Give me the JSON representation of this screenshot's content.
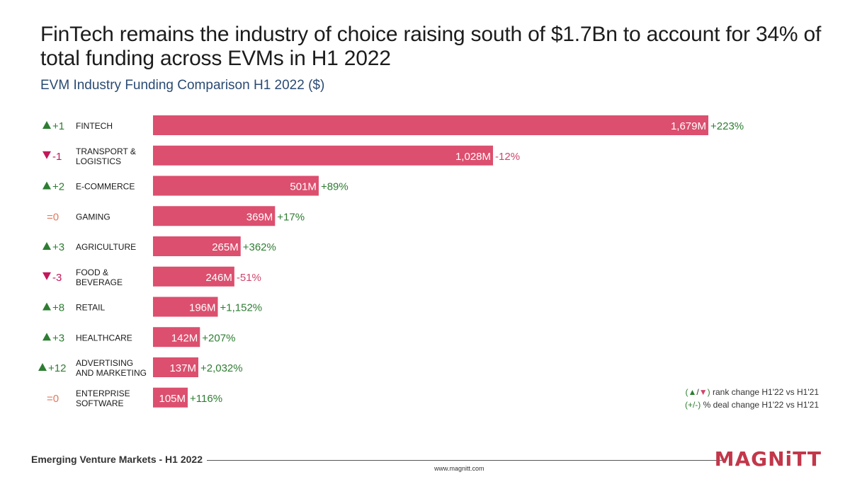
{
  "header": {
    "title": "FinTech remains the industry of choice raising south of $1.7Bn to account for 34% of total funding across EVMs in H1 2022",
    "subtitle": "EVM Industry Funding Comparison H1 2022 ($)"
  },
  "colors": {
    "bar": "#dc4f6e",
    "up": "#2e7d32",
    "down": "#c2185b",
    "neutral": "#e07a5f",
    "pct_positive": "#2e7d32",
    "pct_negative": "#d1456b",
    "bar_label": "#ffffff",
    "category": "#1a1a1a"
  },
  "chart_data": {
    "type": "bar",
    "orientation": "horizontal",
    "title": "EVM Industry Funding Comparison H1 2022 ($)",
    "unit": "M",
    "categories": [
      "FINTECH",
      "TRANSPORT & LOGISTICS",
      "E-COMMERCE",
      "GAMING",
      "AGRICULTURE",
      "FOOD & BEVERAGE",
      "RETAIL",
      "HEALTHCARE",
      "ADVERTISING AND MARKETING",
      "ENTERPRISE SOFTWARE"
    ],
    "category_lines": [
      [
        "FINTECH"
      ],
      [
        "TRANSPORT &",
        "LOGISTICS"
      ],
      [
        "E-COMMERCE"
      ],
      [
        "GAMING"
      ],
      [
        "AGRICULTURE"
      ],
      [
        "FOOD &",
        "BEVERAGE"
      ],
      [
        "RETAIL"
      ],
      [
        "HEALTHCARE"
      ],
      [
        "ADVERTISING",
        "AND MARKETING"
      ],
      [
        "ENTERPRISE",
        "SOFTWARE"
      ]
    ],
    "values": [
      1679,
      1028,
      501,
      369,
      265,
      246,
      196,
      142,
      137,
      105
    ],
    "value_labels": [
      "1,679M",
      "1,028M",
      "501M",
      "369M",
      "265M",
      "246M",
      "196M",
      "142M",
      "137M",
      "105M"
    ],
    "pct_change": [
      "+223%",
      "-12%",
      "+89%",
      "+17%",
      "+362%",
      "-51%",
      "+1,152%",
      "+207%",
      "+2,032%",
      "+116%"
    ],
    "rank_change": [
      {
        "dir": "up",
        "text": "+1"
      },
      {
        "dir": "down",
        "text": "-1"
      },
      {
        "dir": "up",
        "text": "+2"
      },
      {
        "dir": "none",
        "text": "=0"
      },
      {
        "dir": "up",
        "text": "+3"
      },
      {
        "dir": "down",
        "text": "-3"
      },
      {
        "dir": "up",
        "text": "+8"
      },
      {
        "dir": "up",
        "text": "+3"
      },
      {
        "dir": "up",
        "text": "+12"
      },
      {
        "dir": "none",
        "text": "=0"
      }
    ],
    "xlim": [
      0,
      1679
    ]
  },
  "legend": {
    "rank_open": "(",
    "rank_up": "▲",
    "rank_sep": "/",
    "rank_down": "▼",
    "rank_close": ")",
    "rank_text": " rank change H1'22 vs H1'21",
    "pct_prefix": "(+/-)",
    "pct_text": " % deal change H1'22 vs H1'21"
  },
  "footer": {
    "report": "Emerging Venture Markets - H1 2022",
    "url": "www.magnitt.com",
    "logo": "MAGNiTT"
  }
}
